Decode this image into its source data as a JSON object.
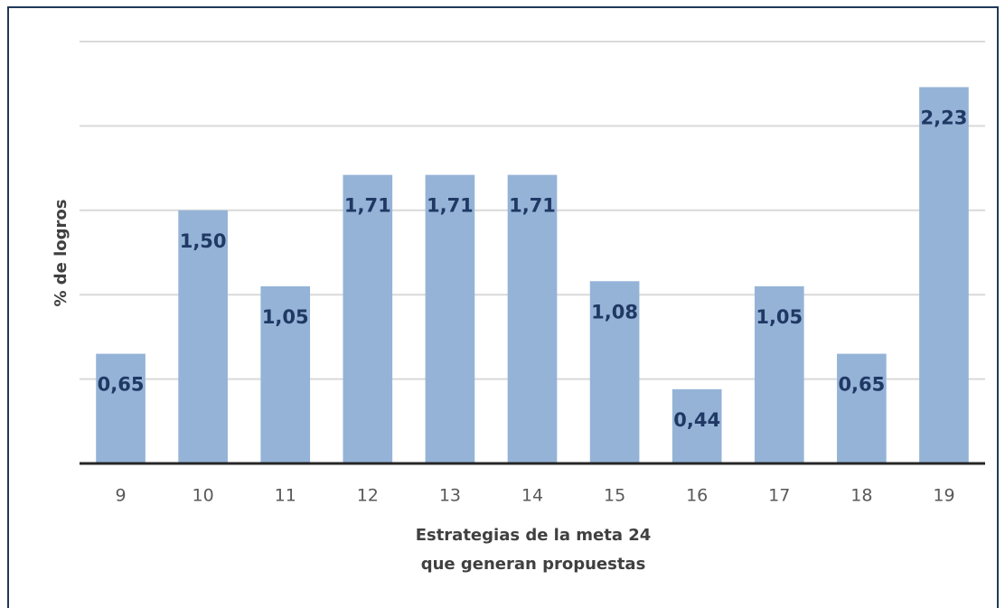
{
  "chart_data": {
    "type": "bar",
    "ylabel": "% de logros",
    "xlabel": [
      "Estrategias de la meta 24",
      "que generan propuestas"
    ],
    "categories": [
      "9",
      "10",
      "11",
      "12",
      "13",
      "14",
      "15",
      "16",
      "17",
      "18",
      "19"
    ],
    "values": [
      0.65,
      1.5,
      1.05,
      1.71,
      1.71,
      1.71,
      1.08,
      0.44,
      1.05,
      0.65,
      2.23
    ],
    "value_labels": [
      "0,65",
      "1,50",
      "1,05",
      "1,71",
      "1,71",
      "1,71",
      "1,08",
      "0,44",
      "1,05",
      "0,65",
      "2,23"
    ],
    "color": "#95b3d7",
    "label_color": "#1f3864",
    "ylim": [
      0,
      2.5
    ],
    "yticks": [
      0,
      0.5,
      1,
      1.5,
      2,
      2.5
    ],
    "grid": true
  }
}
